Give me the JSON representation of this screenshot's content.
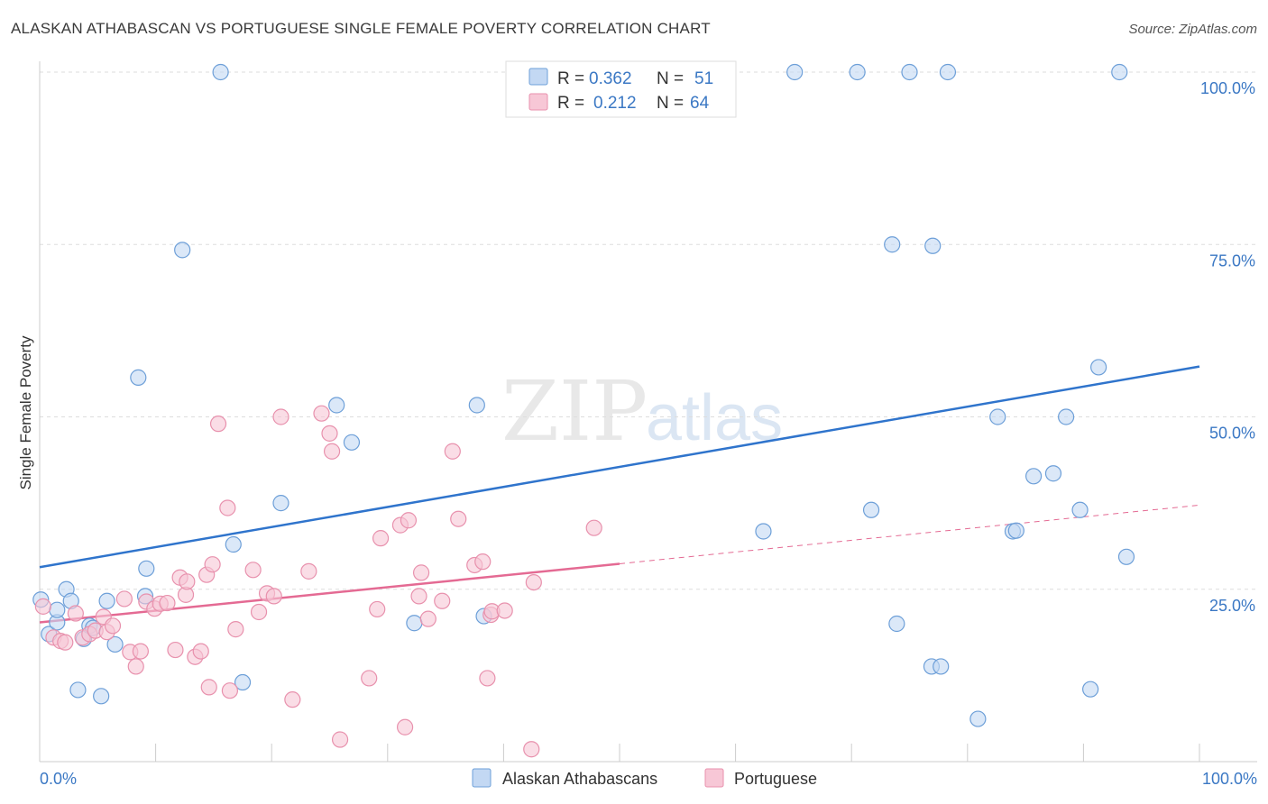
{
  "title": "ALASKAN ATHABASCAN VS PORTUGUESE SINGLE FEMALE POVERTY CORRELATION CHART",
  "source": "Source: ZipAtlas.com",
  "watermark": {
    "zip": "ZIP",
    "atlas": "atlas"
  },
  "colors": {
    "blue_fill": "#c3d8f3",
    "blue_stroke": "#6d9fd8",
    "blue_line": "#2f74cc",
    "pink_fill": "#f7c7d6",
    "pink_stroke": "#e891ad",
    "pink_line": "#e46a93",
    "tick_text": "#3b78c4",
    "grid": "#dddddd"
  },
  "stats": [
    {
      "series": "Alaskan Athabascans",
      "r_label": "R =",
      "r_value": "0.362",
      "n_label": "N =",
      "n_value": "51"
    },
    {
      "series": "Portuguese",
      "r_label": "R =",
      "r_value": "0.212",
      "n_label": "N =",
      "n_value": "64"
    }
  ],
  "chart_data": {
    "type": "scatter",
    "ylabel": "Single Female Poverty",
    "xlabel": "",
    "xlim": [
      0,
      100
    ],
    "ylim": [
      0,
      102
    ],
    "x_tick_labels": [
      "0.0%",
      "100.0%"
    ],
    "y_ticks": [
      {
        "value": 25,
        "label": "25.0%"
      },
      {
        "value": 50,
        "label": "50.0%"
      },
      {
        "value": 75,
        "label": "75.0%"
      },
      {
        "value": 100,
        "label": "100.0%"
      }
    ],
    "legend_position": "bottom",
    "series": [
      {
        "name": "Alaskan Athabascans",
        "color": "#6d9fd8",
        "points": [
          [
            0.1,
            23.5
          ],
          [
            0.8,
            18.5
          ],
          [
            1.5,
            20.2
          ],
          [
            1.5,
            22.0
          ],
          [
            2.3,
            25.0
          ],
          [
            2.7,
            23.3
          ],
          [
            3.3,
            10.4
          ],
          [
            3.8,
            17.8
          ],
          [
            4.3,
            19.7
          ],
          [
            4.6,
            19.4
          ],
          [
            5.3,
            9.5
          ],
          [
            5.8,
            23.3
          ],
          [
            6.5,
            17.0
          ],
          [
            8.5,
            55.7
          ],
          [
            9.2,
            28.0
          ],
          [
            9.1,
            24.0
          ],
          [
            12.3,
            74.2
          ],
          [
            15.6,
            100.0
          ],
          [
            16.7,
            31.5
          ],
          [
            17.5,
            11.5
          ],
          [
            20.8,
            37.5
          ],
          [
            25.6,
            51.7
          ],
          [
            26.9,
            46.3
          ],
          [
            32.3,
            20.1
          ],
          [
            37.7,
            51.7
          ],
          [
            38.3,
            21.1
          ],
          [
            49.4,
            100.0
          ],
          [
            52.4,
            100.0
          ],
          [
            62.4,
            33.4
          ],
          [
            65.1,
            100.0
          ],
          [
            70.5,
            100.0
          ],
          [
            71.7,
            36.5
          ],
          [
            73.9,
            20.0
          ],
          [
            73.5,
            75.0
          ],
          [
            75.0,
            100.0
          ],
          [
            76.9,
            13.8
          ],
          [
            77.0,
            74.8
          ],
          [
            77.7,
            13.8
          ],
          [
            78.3,
            100.0
          ],
          [
            80.9,
            6.2
          ],
          [
            82.6,
            50.0
          ],
          [
            83.9,
            33.4
          ],
          [
            84.2,
            33.5
          ],
          [
            85.7,
            41.4
          ],
          [
            87.4,
            41.8
          ],
          [
            88.5,
            50.0
          ],
          [
            89.7,
            36.5
          ],
          [
            90.6,
            10.5
          ],
          [
            91.3,
            57.2
          ],
          [
            93.7,
            29.7
          ],
          [
            93.1,
            100.0
          ]
        ]
      },
      {
        "name": "Portuguese",
        "color": "#e891ad",
        "points": [
          [
            0.3,
            22.5
          ],
          [
            1.2,
            18.0
          ],
          [
            1.8,
            17.5
          ],
          [
            2.2,
            17.3
          ],
          [
            3.1,
            21.5
          ],
          [
            3.7,
            18.0
          ],
          [
            4.3,
            18.5
          ],
          [
            4.8,
            19.0
          ],
          [
            5.5,
            21.0
          ],
          [
            5.8,
            18.8
          ],
          [
            6.3,
            19.7
          ],
          [
            7.3,
            23.6
          ],
          [
            7.8,
            15.9
          ],
          [
            8.3,
            13.8
          ],
          [
            8.7,
            16.0
          ],
          [
            9.2,
            23.2
          ],
          [
            9.9,
            22.2
          ],
          [
            10.4,
            22.9
          ],
          [
            11.0,
            23.0
          ],
          [
            11.7,
            16.2
          ],
          [
            12.1,
            26.7
          ],
          [
            12.6,
            24.2
          ],
          [
            13.4,
            15.2
          ],
          [
            13.9,
            16.0
          ],
          [
            14.4,
            27.1
          ],
          [
            14.6,
            10.8
          ],
          [
            14.9,
            28.6
          ],
          [
            15.4,
            49.0
          ],
          [
            16.2,
            36.8
          ],
          [
            16.4,
            10.3
          ],
          [
            16.9,
            19.2
          ],
          [
            18.4,
            27.8
          ],
          [
            18.9,
            21.7
          ],
          [
            19.6,
            24.4
          ],
          [
            20.2,
            24.0
          ],
          [
            20.8,
            50.0
          ],
          [
            21.8,
            9.0
          ],
          [
            23.2,
            27.6
          ],
          [
            24.3,
            50.5
          ],
          [
            25.0,
            47.6
          ],
          [
            25.9,
            3.2
          ],
          [
            28.4,
            12.1
          ],
          [
            29.1,
            22.1
          ],
          [
            29.4,
            32.4
          ],
          [
            31.1,
            34.3
          ],
          [
            31.5,
            5.0
          ],
          [
            31.8,
            35.0
          ],
          [
            32.7,
            24.0
          ],
          [
            32.9,
            27.4
          ],
          [
            33.5,
            20.7
          ],
          [
            34.7,
            23.3
          ],
          [
            35.6,
            45.0
          ],
          [
            36.1,
            35.2
          ],
          [
            37.5,
            28.5
          ],
          [
            38.2,
            29.0
          ],
          [
            38.6,
            12.1
          ],
          [
            38.9,
            21.3
          ],
          [
            39.0,
            21.8
          ],
          [
            40.1,
            21.9
          ],
          [
            42.4,
            1.8
          ],
          [
            42.6,
            26.0
          ],
          [
            47.8,
            33.9
          ],
          [
            12.7,
            26.1
          ],
          [
            25.2,
            45.0
          ]
        ]
      }
    ],
    "trend_lines": [
      {
        "series": "Alaskan Athabascans",
        "x0": 0,
        "y0": 28.2,
        "x1": 100,
        "y1": 57.3,
        "x_solid_end": 100
      },
      {
        "series": "Portuguese",
        "x0": 0,
        "y0": 20.2,
        "x1": 100,
        "y1": 37.2,
        "x_solid_end": 50
      }
    ]
  }
}
